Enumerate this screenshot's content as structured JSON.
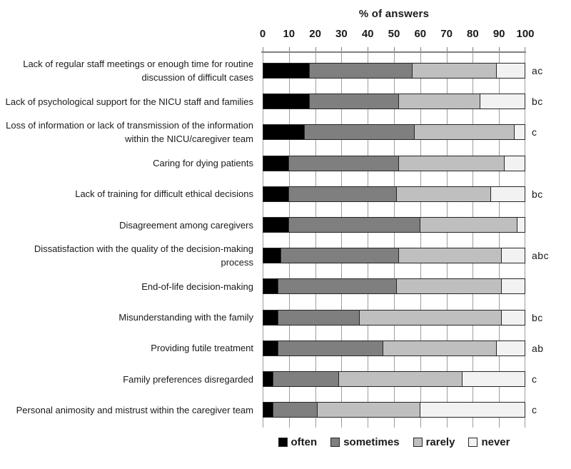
{
  "chart_data": {
    "type": "bar",
    "stacked": true,
    "orientation": "horizontal",
    "title": "% of answers",
    "xlabel": "% of answers",
    "xlim": [
      0,
      100
    ],
    "x_ticks": [
      0,
      10,
      20,
      30,
      40,
      50,
      60,
      70,
      80,
      90,
      100
    ],
    "grid": true,
    "legend_position": "bottom",
    "categories": [
      "Lack of regular staff meetings or enough time for routine discussion of difficult cases",
      "Lack of psychological support for the NICU staff and families",
      "Loss of information or lack of transmission of the information within the NICU/caregiver team",
      "Caring for dying patients",
      "Lack of training for difficult ethical decisions",
      "Disagreement among caregivers",
      "Dissatisfaction with the quality of the decision-making process",
      "End-of-life decision-making",
      "Misunderstanding with the family",
      "Providing futile treatment",
      "Family preferences disregarded",
      "Personal animosity and mistrust within the caregiver team"
    ],
    "annotations": [
      "ac",
      "bc",
      "c",
      "",
      "bc",
      "",
      "abc",
      "",
      "bc",
      "ab",
      "c",
      "c"
    ],
    "series": [
      {
        "name": "often",
        "color": "#000000",
        "values": [
          18,
          18,
          16,
          10,
          10,
          10,
          7,
          6,
          6,
          6,
          4,
          4
        ]
      },
      {
        "name": "sometimes",
        "color": "#7f7f7f",
        "values": [
          39,
          34,
          42,
          42,
          41,
          50,
          45,
          45,
          31,
          40,
          25,
          17
        ]
      },
      {
        "name": "rarely",
        "color": "#bfbfbf",
        "values": [
          32,
          31,
          38,
          40,
          36,
          37,
          39,
          40,
          54,
          43,
          47,
          39
        ]
      },
      {
        "name": "never",
        "color": "#f2f2f2",
        "values": [
          11,
          17,
          4,
          8,
          13,
          3,
          9,
          9,
          9,
          11,
          24,
          40
        ]
      }
    ],
    "legend": [
      "often",
      "sometimes",
      "rarely",
      "never"
    ]
  },
  "colors": {
    "background": "#ffffff",
    "grid": "#9d9d9d",
    "axis": "#808080",
    "bar_border": "#262626",
    "text": "#1a1a1a"
  }
}
